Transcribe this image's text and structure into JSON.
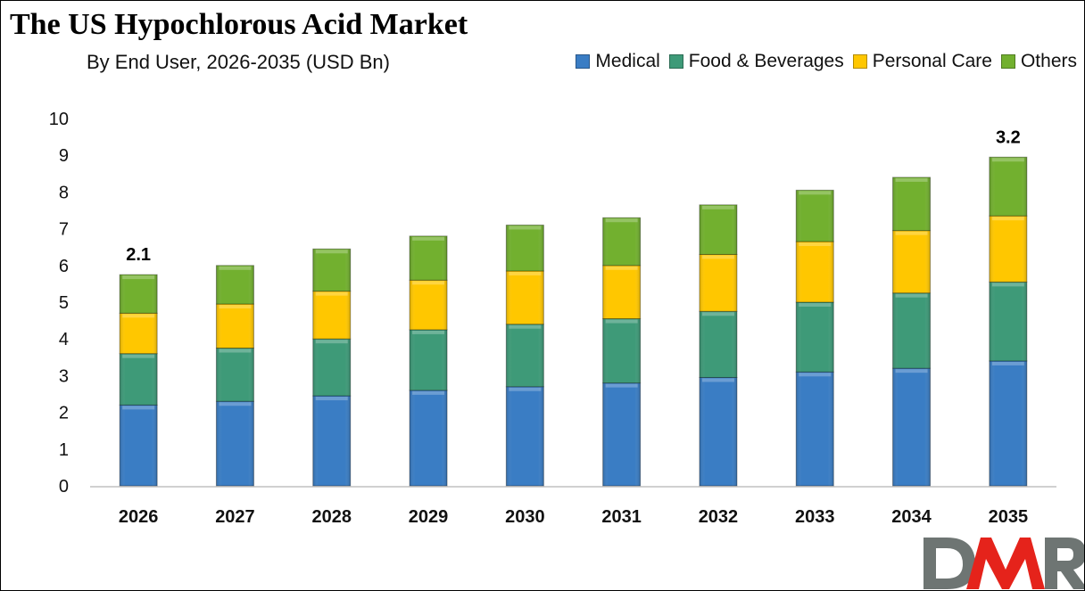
{
  "chart_data": {
    "type": "bar",
    "stacked": true,
    "title": "The US Hypochlorous Acid Market",
    "subtitle": "By End User, 2026-2035 (USD Bn)",
    "categories": [
      "2026",
      "2027",
      "2028",
      "2029",
      "2030",
      "2031",
      "2032",
      "2033",
      "2034",
      "2035"
    ],
    "series": [
      {
        "name": "Medical",
        "color": "#3A7DC4",
        "values": [
          2.2,
          2.3,
          2.45,
          2.6,
          2.7,
          2.8,
          2.95,
          3.1,
          3.2,
          3.4
        ]
      },
      {
        "name": "Food & Beverages",
        "color": "#3E9A78",
        "values": [
          1.4,
          1.45,
          1.55,
          1.65,
          1.7,
          1.75,
          1.8,
          1.9,
          2.05,
          2.15
        ]
      },
      {
        "name": "Personal Care",
        "color": "#FFC700",
        "values": [
          1.1,
          1.2,
          1.3,
          1.35,
          1.45,
          1.45,
          1.55,
          1.65,
          1.7,
          1.8
        ]
      },
      {
        "name": "Others",
        "color": "#72B02F",
        "values": [
          1.05,
          1.05,
          1.15,
          1.2,
          1.25,
          1.3,
          1.35,
          1.4,
          1.45,
          1.6
        ]
      }
    ],
    "yticks": [
      "0",
      "1",
      "2",
      "3",
      "4",
      "5",
      "6",
      "7",
      "8",
      "9",
      "10"
    ],
    "ylim": [
      0,
      10
    ],
    "grid": false,
    "legend": "top-right",
    "annotations": [
      {
        "category": "2026",
        "text": "2.1"
      },
      {
        "category": "2035",
        "text": "3.2"
      }
    ]
  },
  "logo": {
    "text": "DMR"
  }
}
